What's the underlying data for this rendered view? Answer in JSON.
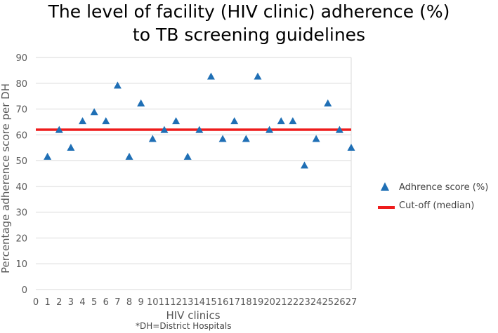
{
  "title": {
    "line1": "The level of facility (HIV clinic) adherence (%)",
    "line2": "to TB screening guidelines"
  },
  "footnote": "*DH=District Hospitals",
  "legend": {
    "series_label": "Adhrence score (%)",
    "cutoff_label": "Cut-off (median)"
  },
  "colors": {
    "marker": "#1f6fb5",
    "cutoff": "#ee1c1c",
    "grid": "#d9d9d9",
    "axis_text": "#595959"
  },
  "chart_data": {
    "type": "scatter",
    "title": "The level of facility (HIV clinic) adherence (%) to TB screening guidelines",
    "xlabel": "HIV clinics",
    "ylabel": "Percentage adherence score per DH",
    "xlim": [
      0,
      27
    ],
    "ylim": [
      0,
      90
    ],
    "x_ticks": [
      0,
      1,
      2,
      3,
      4,
      5,
      6,
      7,
      8,
      9,
      10,
      11,
      12,
      13,
      14,
      15,
      16,
      17,
      18,
      19,
      20,
      21,
      22,
      23,
      24,
      25,
      26,
      27
    ],
    "y_ticks": [
      0,
      10,
      20,
      30,
      40,
      50,
      60,
      70,
      80,
      90
    ],
    "grid": true,
    "legend_position": "right",
    "series": [
      {
        "name": "Adhrence score (%)",
        "marker": "triangle",
        "x": [
          1,
          2,
          3,
          4,
          5,
          6,
          7,
          8,
          9,
          10,
          11,
          12,
          13,
          14,
          15,
          16,
          17,
          18,
          19,
          20,
          21,
          22,
          23,
          24,
          25,
          26,
          27
        ],
        "values": [
          51.7,
          62.1,
          55.2,
          65.5,
          69.0,
          65.5,
          79.3,
          51.7,
          72.4,
          58.6,
          62.1,
          65.5,
          51.7,
          62.1,
          82.8,
          58.6,
          65.5,
          58.6,
          82.8,
          62.1,
          65.5,
          65.5,
          48.3,
          58.6,
          72.4,
          62.1,
          55.2
        ]
      }
    ],
    "cutoff": {
      "name": "Cut-off (median)",
      "value": 62
    }
  }
}
